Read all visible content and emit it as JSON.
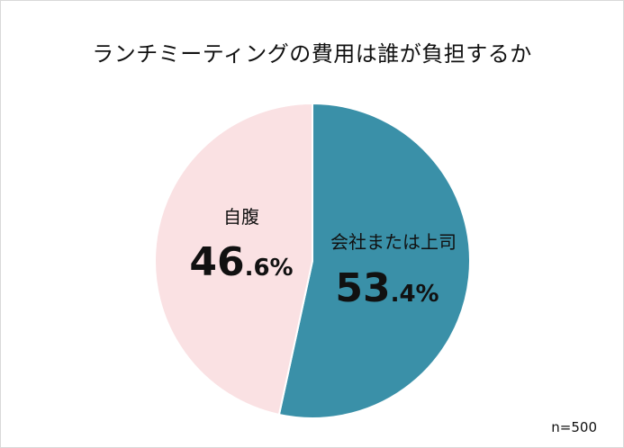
{
  "chart_data": {
    "type": "pie",
    "title": "ランチミーティングの費用は誰が負担するか",
    "slices": [
      {
        "label": "会社または上司",
        "value": 53.4,
        "int_part": "53",
        "dec_part": ".4%",
        "color": "#3a90a8"
      },
      {
        "label": "自腹",
        "value": 46.6,
        "int_part": "46",
        "dec_part": ".6%",
        "color": "#fae1e3"
      }
    ],
    "start": "12 o'clock",
    "direction": "clockwise",
    "sample_note": "n=500"
  }
}
